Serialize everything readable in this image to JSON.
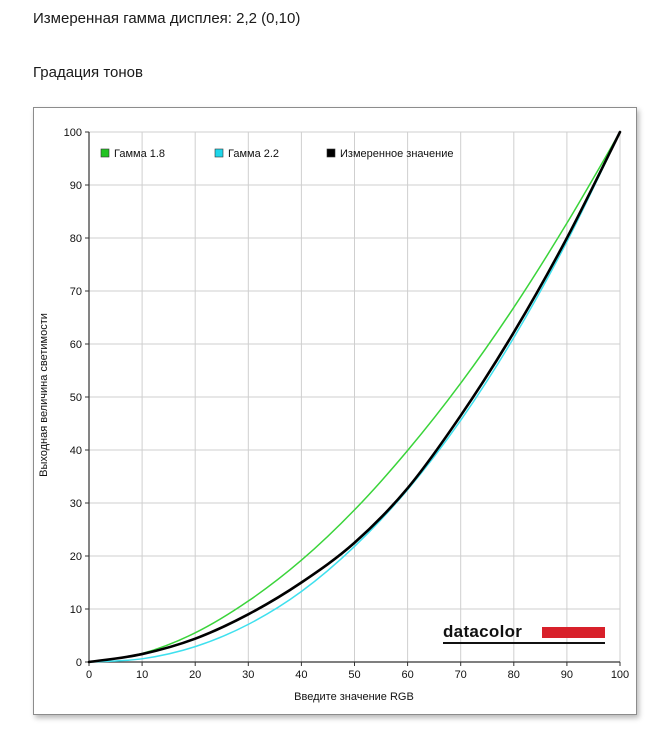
{
  "header": {
    "measured_gamma": "Измеренная гамма дисплея: 2,2 (0,10)",
    "section_title": "Градация тонов"
  },
  "brand": {
    "name": "datacolor",
    "colors": {
      "text": "#111111",
      "bar": "#d8202a"
    }
  },
  "chart_data": {
    "type": "line",
    "title": "",
    "xlabel": "Введите значение RGB",
    "ylabel": "Выходная величина светимости",
    "xlim": [
      0,
      100
    ],
    "ylim": [
      0,
      100
    ],
    "xticks": [
      0,
      10,
      20,
      30,
      40,
      50,
      60,
      70,
      80,
      90,
      100
    ],
    "yticks": [
      0,
      10,
      20,
      30,
      40,
      50,
      60,
      70,
      80,
      90,
      100
    ],
    "grid": true,
    "legend_position": "top-left",
    "series": [
      {
        "name": "Гамма 1.8",
        "color": "#3ad43a",
        "swatch": "#22c322",
        "x": [
          0,
          10,
          20,
          30,
          40,
          50,
          60,
          70,
          80,
          90,
          100
        ],
        "y": [
          0,
          1.6,
          5.5,
          11.5,
          19.2,
          28.7,
          39.9,
          52.6,
          66.9,
          82.8,
          100
        ]
      },
      {
        "name": "Гамма 2.2",
        "color": "#3fe0ee",
        "swatch": "#1ed6ea",
        "x": [
          0,
          10,
          20,
          30,
          40,
          50,
          60,
          70,
          80,
          90,
          100
        ],
        "y": [
          0,
          0.6,
          2.9,
          7.1,
          13.3,
          21.8,
          32.5,
          45.6,
          61.2,
          79.3,
          100
        ]
      },
      {
        "name": "Измеренное значение",
        "color": "#000000",
        "swatch": "#000000",
        "x": [
          0,
          10,
          20,
          30,
          40,
          50,
          60,
          70,
          80,
          90,
          100
        ],
        "y": [
          0,
          1.5,
          4.4,
          9.0,
          15.0,
          22.5,
          32.8,
          46.5,
          62.2,
          80.0,
          100
        ]
      }
    ]
  }
}
